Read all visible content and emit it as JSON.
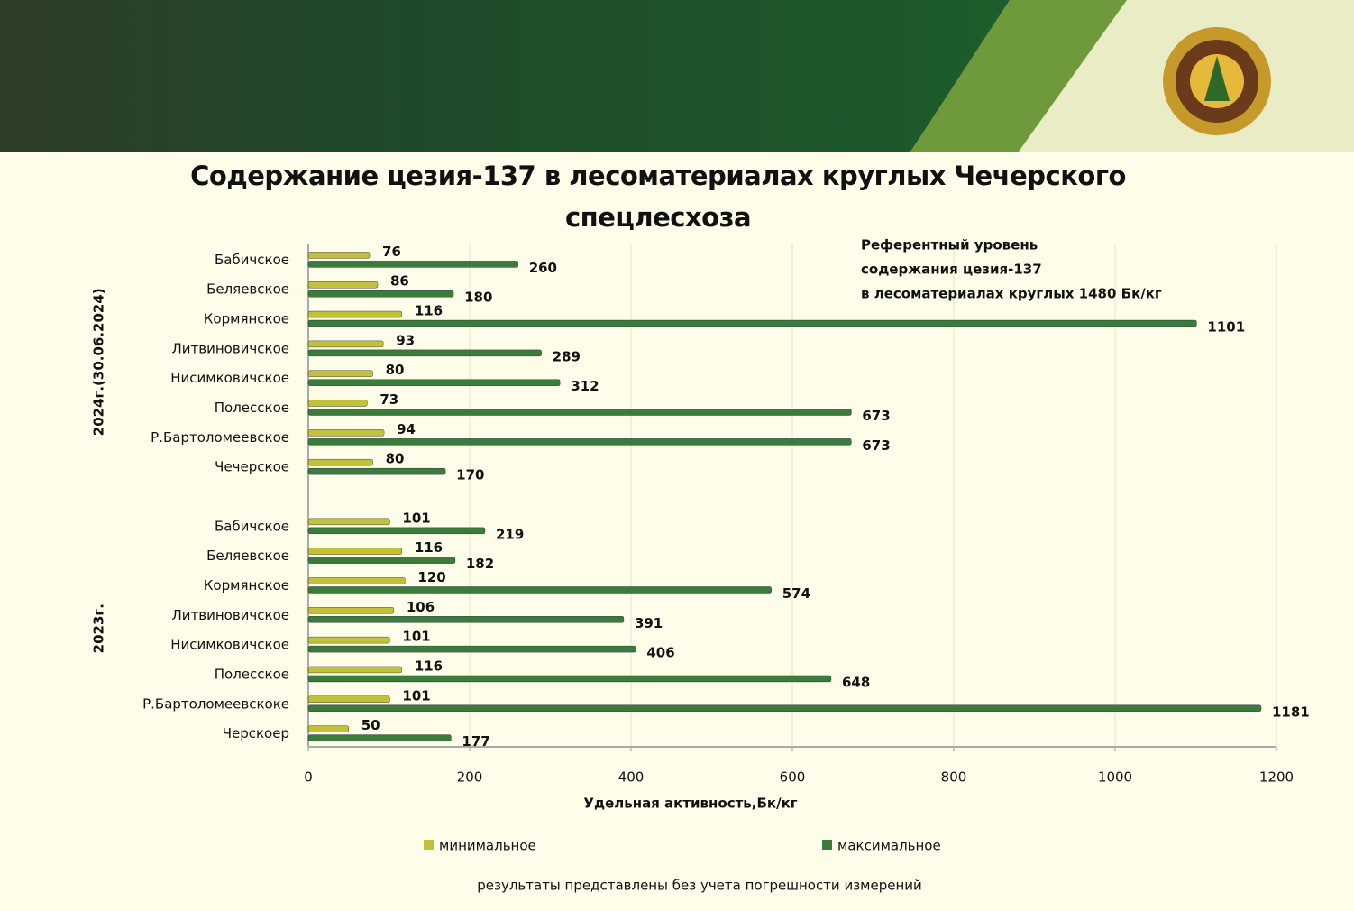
{
  "chart_data": {
    "type": "bar",
    "orientation": "horizontal",
    "title": "Содержание цезия-137 в лесоматериалах круглых Чечерского спецлесхоза",
    "annotation": [
      "Референтный уровень",
      "содержания цезия-137",
      "в лесоматериалах круглых 1480 Бк/кг"
    ],
    "group_labels": [
      "2024г.(30.06.2024)",
      "2023г."
    ],
    "categories": [
      "Бабичское",
      "Беляевское",
      "Кормянское",
      "Литвиновичское",
      "Нисимковичское",
      "Полесское",
      "Р.Бартоломеевское",
      "Чечерское",
      null,
      "Бабичское",
      "Беляевское",
      "Кормянское",
      "Литвиновичское",
      "Нисимковичское",
      "Полесское",
      "Р.Бартоломеевскоке",
      "Черскоер"
    ],
    "series": [
      {
        "name": "минимальное",
        "color": "#c2c23a",
        "values": [
          76,
          86,
          116,
          93,
          80,
          73,
          94,
          80,
          null,
          101,
          116,
          120,
          106,
          101,
          116,
          101,
          50
        ]
      },
      {
        "name": "максимальное",
        "color": "#3b7b3b",
        "values": [
          260,
          180,
          1101,
          289,
          312,
          673,
          673,
          170,
          null,
          219,
          182,
          574,
          391,
          406,
          648,
          1181,
          177
        ]
      }
    ],
    "xlabel": "Удельная активность,Бк/кг",
    "xlim": [
      0,
      1200
    ],
    "xticks": [
      0,
      200,
      400,
      600,
      800,
      1000,
      1200
    ],
    "grid": true,
    "note": "результаты представлены без учета погрешности измерений"
  }
}
